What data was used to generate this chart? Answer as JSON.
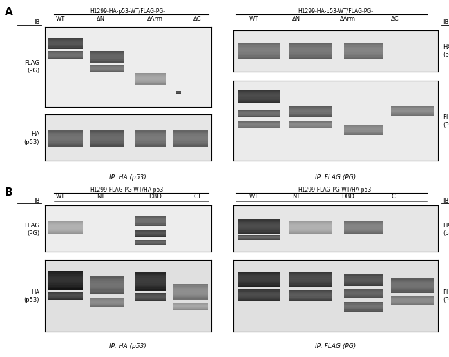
{
  "fig_width": 6.5,
  "fig_height": 5.18,
  "bg_color": "#ffffff",
  "panel_A_label": "A",
  "panel_B_label": "B",
  "panel_A_left_title": "H1299-HA-p53-WT/FLAG-PG-",
  "panel_A_right_title": "H1299-HA-p53-WT/FLAG-PG-",
  "panel_B_left_title": "H1299-FLAG-PG-WT/HA-p53-",
  "panel_B_right_title": "H1299-FLAG-PG-WT/HA-p53-",
  "panel_A_left_cols": [
    "WT",
    "ΔN",
    "ΔArm",
    "ΔC"
  ],
  "panel_A_right_cols": [
    "WT",
    "ΔN",
    "ΔArm",
    "ΔC"
  ],
  "panel_B_left_cols": [
    "WT",
    "NT",
    "DBD",
    "CT"
  ],
  "panel_B_right_cols": [
    "WT",
    "NT",
    "DBD",
    "CT"
  ],
  "panel_A_left_ip": "IP: HA (p53)",
  "panel_A_right_ip": "IP: FLAG (PG)",
  "panel_B_left_ip": "IP: HA (p53)",
  "panel_B_right_ip": "IP: FLAG (PG)",
  "IB_label": "IB"
}
